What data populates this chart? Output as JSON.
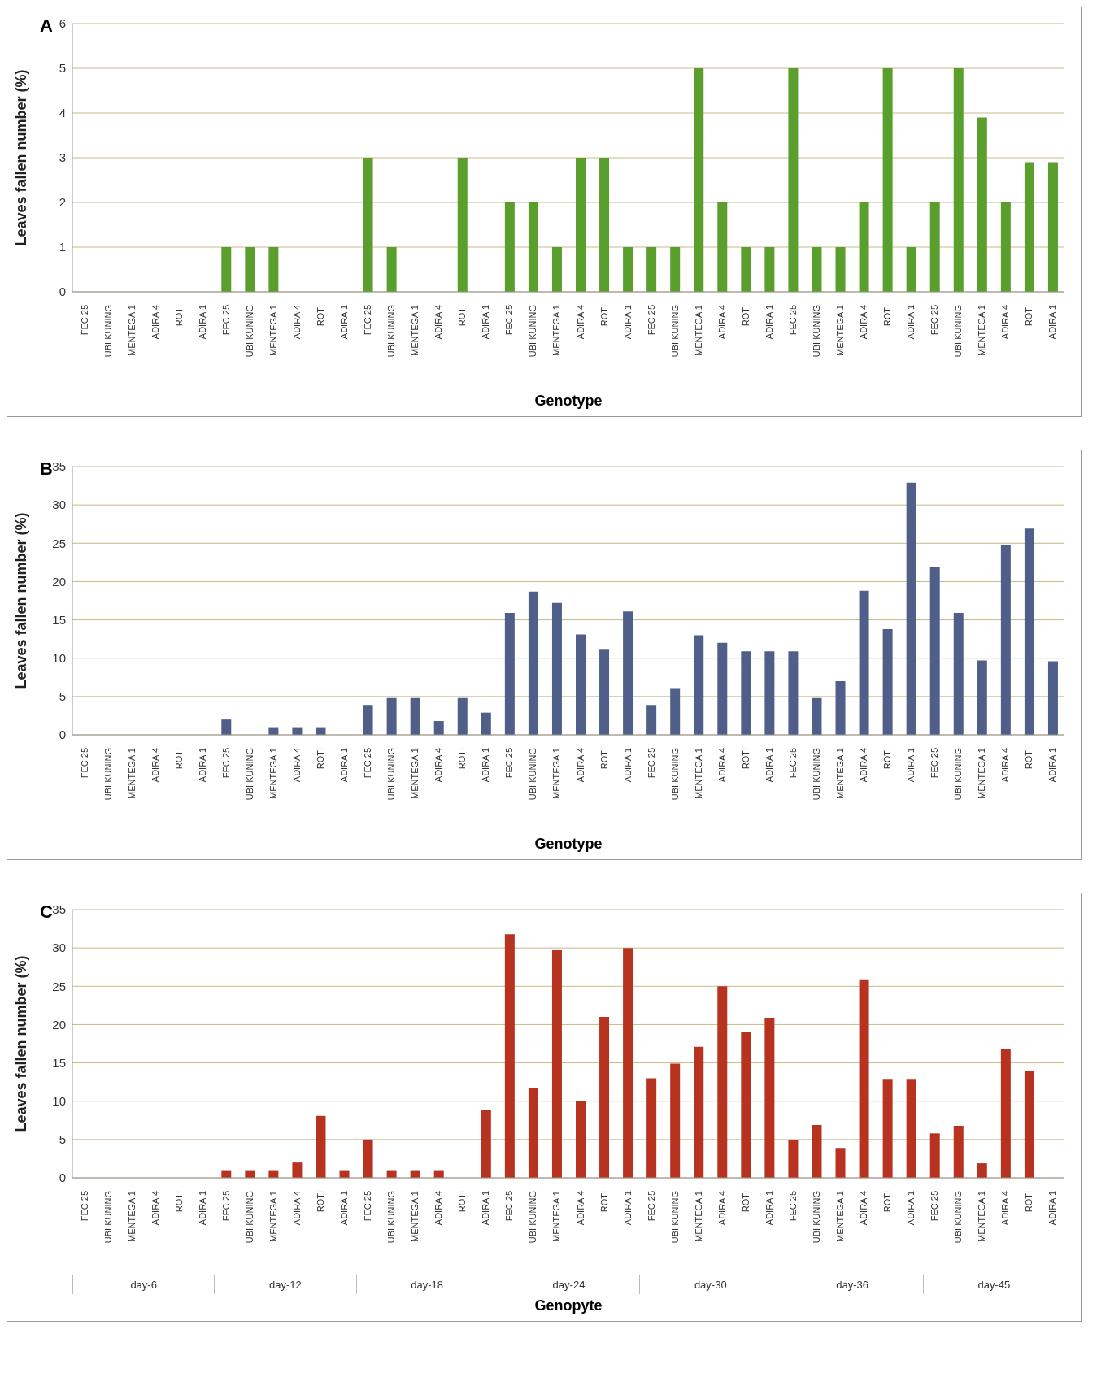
{
  "chart_data": [
    {
      "type": "bar",
      "title": "A",
      "xlabel": "Genotype",
      "ylabel": "Leaves fallen number (%)",
      "categories": [
        "FEC 25",
        "UBI KUNING",
        "MENTEGA 1",
        "ADIRA 4",
        "ROTI",
        "ADIRA 1",
        "FEC 25",
        "UBI KUNING",
        "MENTEGA 1",
        "ADIRA 4",
        "ROTI",
        "ADIRA 1",
        "FEC 25",
        "UBI KUNING",
        "MENTEGA 1",
        "ADIRA 4",
        "ROTI",
        "ADIRA 1",
        "FEC 25",
        "UBI KUNING",
        "MENTEGA 1",
        "ADIRA 4",
        "ROTI",
        "ADIRA 1",
        "FEC 25",
        "UBI KUNING",
        "MENTEGA 1",
        "ADIRA 4",
        "ROTI",
        "ADIRA 1",
        "FEC 25",
        "UBI KUNING",
        "MENTEGA 1",
        "ADIRA 4",
        "ROTI",
        "ADIRA 1",
        "FEC 25",
        "UBI KUNING",
        "MENTEGA 1",
        "ADIRA 4",
        "ROTI",
        "ADIRA 1"
      ],
      "values": [
        0,
        0,
        0,
        0,
        0,
        0,
        1,
        1,
        1,
        0,
        0,
        0,
        3,
        1,
        0,
        0,
        3,
        0,
        2,
        2,
        1,
        3,
        3,
        1,
        1,
        1,
        5,
        2,
        1,
        1,
        5,
        1,
        1,
        2,
        5,
        1,
        2,
        5,
        3.9,
        2,
        2.9,
        2.9
      ],
      "color": "#5a9e2e",
      "ylim": [
        0,
        6
      ],
      "yticks": [
        0,
        1,
        2,
        3,
        4,
        5,
        6
      ],
      "grid": "y"
    },
    {
      "type": "bar",
      "title": "B",
      "xlabel": "Genotype",
      "ylabel": "Leaves fallen number (%)",
      "categories": [
        "FEC 25",
        "UBI KUNING",
        "MENTEGA 1",
        "ADIRA 4",
        "ROTI",
        "ADIRA 1",
        "FEC 25",
        "UBI KUNING",
        "MENTEGA 1",
        "ADIRA 4",
        "ROTI",
        "ADIRA 1",
        "FEC 25",
        "UBI KUNING",
        "MENTEGA 1",
        "ADIRA 4",
        "ROTI",
        "ADIRA 1",
        "FEC 25",
        "UBI KUNING",
        "MENTEGA 1",
        "ADIRA 4",
        "ROTI",
        "ADIRA 1",
        "FEC 25",
        "UBI KUNING",
        "MENTEGA 1",
        "ADIRA 4",
        "ROTI",
        "ADIRA 1",
        "FEC 25",
        "UBI KUNING",
        "MENTEGA 1",
        "ADIRA 4",
        "ROTI",
        "ADIRA 1",
        "FEC 25",
        "UBI KUNING",
        "MENTEGA 1",
        "ADIRA 4",
        "ROTI",
        "ADIRA 1"
      ],
      "values": [
        0,
        0,
        0,
        0,
        0,
        0,
        2,
        0,
        1,
        1,
        1,
        0,
        3.9,
        4.8,
        4.8,
        1.8,
        4.8,
        2.9,
        15.9,
        18.7,
        17.2,
        13.1,
        11.1,
        16.1,
        3.9,
        6.1,
        13,
        12,
        10.9,
        10.9,
        10.9,
        4.8,
        7,
        18.8,
        13.8,
        32.9,
        21.9,
        15.9,
        9.7,
        24.8,
        26.9,
        9.6
      ],
      "color": "#4f5f8a",
      "ylim": [
        0,
        35
      ],
      "yticks": [
        0,
        5,
        10,
        15,
        20,
        25,
        30,
        35
      ],
      "grid": "y"
    },
    {
      "type": "bar",
      "title": "C",
      "xlabel": "Genopyte",
      "ylabel": "Leaves fallen number (%)",
      "categories": [
        "FEC 25",
        "UBI KUNING",
        "MENTEGA 1",
        "ADIRA 4",
        "ROTI",
        "ADIRA 1",
        "FEC 25",
        "UBI KUNING",
        "MENTEGA 1",
        "ADIRA 4",
        "ROTI",
        "ADIRA 1",
        "FEC 25",
        "UBI KUNING",
        "MENTEGA 1",
        "ADIRA 4",
        "ROTI",
        "ADIRA 1",
        "FEC 25",
        "UBI KUNING",
        "MENTEGA 1",
        "ADIRA 4",
        "ROTI",
        "ADIRA 1",
        "FEC 25",
        "UBI KUNING",
        "MENTEGA 1",
        "ADIRA 4",
        "ROTI",
        "ADIRA 1",
        "FEC 25",
        "UBI KUNING",
        "MENTEGA 1",
        "ADIRA 4",
        "ROTI",
        "ADIRA 1",
        "FEC 25",
        "UBI KUNING",
        "MENTEGA 1",
        "ADIRA 4",
        "ROTI",
        "ADIRA 1"
      ],
      "values": [
        0,
        0,
        0,
        0,
        0,
        0,
        1,
        1,
        1,
        2,
        8.1,
        1,
        5,
        1,
        1,
        1,
        0,
        8.8,
        31.8,
        11.7,
        29.7,
        10,
        21,
        30,
        13,
        14.9,
        17.1,
        25,
        19,
        20.9,
        4.9,
        6.9,
        3.9,
        25.9,
        12.8,
        12.8,
        5.8,
        6.8,
        1.9,
        16.8,
        13.9,
        0
      ],
      "color": "#b83220",
      "ylim": [
        0,
        35
      ],
      "yticks": [
        0,
        5,
        10,
        15,
        20,
        25,
        30,
        35
      ],
      "grid": "y",
      "annotations": [
        "day-6",
        "day-12",
        "day-18",
        "day-24",
        "day-30",
        "day-36",
        "day-45"
      ]
    }
  ]
}
